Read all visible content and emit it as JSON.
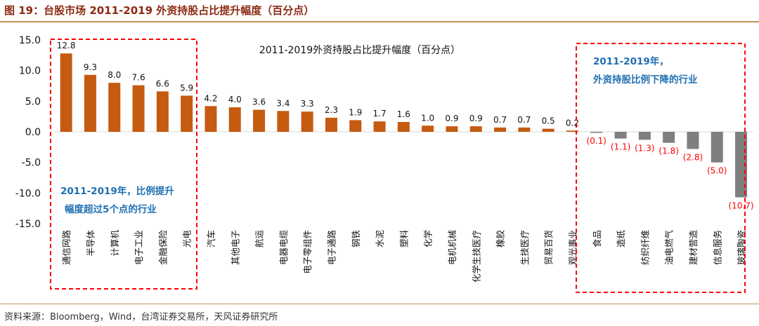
{
  "figure_title": "图 19：台股市场 2011-2019 外资持股占比提升幅度（百分点）",
  "source_note": "资料来源：Bloomberg，Wind，台湾证券交易所，天风证券研究所",
  "colors": {
    "positive": "#c55a11",
    "negative": "#7f7f7f",
    "negative_label": "#ff0000",
    "annotation": "#1f6fb2",
    "box": "#ff0000"
  },
  "chart_data": {
    "type": "bar",
    "title": "2011-2019外资持股占比提升幅度（百分点）",
    "xlabel": "",
    "ylabel": "",
    "ylim": [
      -15,
      15
    ],
    "yticks": [
      "15.0",
      "10.0",
      "5.0",
      "0.0",
      "-5.0",
      "-10.0",
      "-15.0"
    ],
    "grid": false,
    "categories": [
      "通信网路",
      "半导体",
      "计算机",
      "电子工业",
      "金融保险",
      "光电",
      "汽车",
      "其他电子",
      "航运",
      "电器电缆",
      "电子零组件",
      "电子通路",
      "钢铁",
      "水泥",
      "塑料",
      "化学",
      "电机机械",
      "化学生技医疗",
      "橡胶",
      "生技医疗",
      "贸易百货",
      "观光事业",
      "食品",
      "造纸",
      "纺织纤维",
      "油电燃气",
      "建材营造",
      "信息服务",
      "玻璃陶瓷"
    ],
    "values": [
      12.8,
      9.3,
      8.0,
      7.6,
      6.6,
      5.9,
      4.2,
      4.0,
      3.6,
      3.4,
      3.3,
      2.3,
      1.9,
      1.7,
      1.6,
      1.0,
      0.9,
      0.9,
      0.7,
      0.7,
      0.5,
      0.2,
      -0.1,
      -1.1,
      -1.3,
      -1.8,
      -2.8,
      -5.0,
      -10.7
    ],
    "data_labels": [
      "12.8",
      "9.3",
      "8.0",
      "7.6",
      "6.6",
      "5.9",
      "4.2",
      "4.0",
      "3.6",
      "3.4",
      "3.3",
      "2.3",
      "1.9",
      "1.7",
      "1.6",
      "1.0",
      "0.9",
      "0.9",
      "0.7",
      "0.7",
      "0.5",
      "0.2",
      "(0.1)",
      "(1.1)",
      "(1.3)",
      "(1.8)",
      "(2.8)",
      "(5.0)",
      "(10.7)"
    ],
    "annotations": [
      {
        "lines": [
          "2011-2019年，比例提升",
          "幅度超过5个点的行业"
        ]
      },
      {
        "lines": [
          "2011-2019年，",
          "外资持股比例下降的行业"
        ]
      }
    ]
  }
}
